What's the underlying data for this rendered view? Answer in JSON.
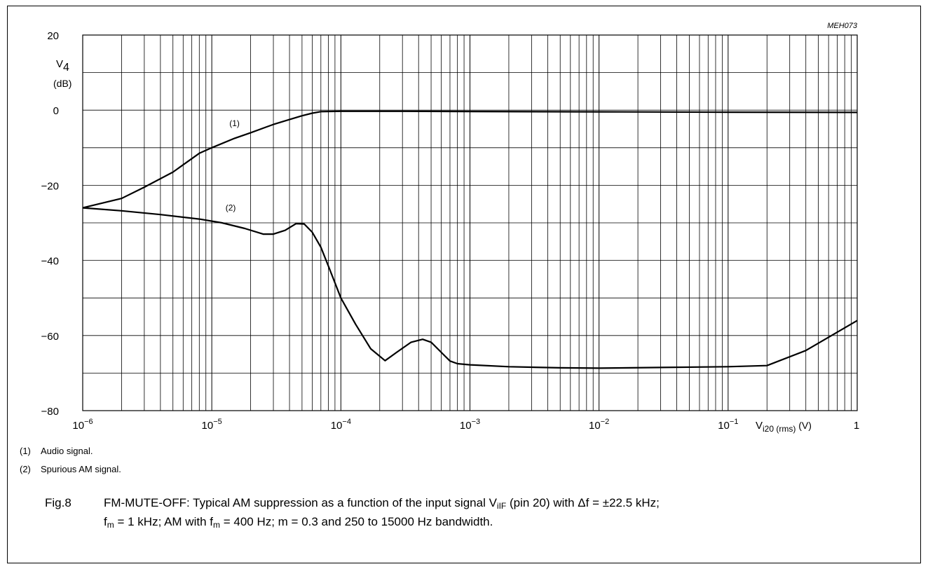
{
  "chart_data": {
    "type": "line",
    "code": "MEH073",
    "x_scale": "log",
    "xlim": [
      1e-06,
      1
    ],
    "ylim": [
      -80,
      20
    ],
    "y_ticks": [
      "20",
      "0",
      "−20",
      "−40",
      "−60",
      "−80"
    ],
    "y_tick_values": [
      20,
      0,
      -20,
      -40,
      -60,
      -80
    ],
    "x_ticks": [
      {
        "value": 1e-06,
        "base": "10",
        "exp": "−6"
      },
      {
        "value": 1e-05,
        "base": "10",
        "exp": "−5"
      },
      {
        "value": 0.0001,
        "base": "10",
        "exp": "−4"
      },
      {
        "value": 0.001,
        "base": "10",
        "exp": "−3"
      },
      {
        "value": 0.01,
        "base": "10",
        "exp": "−2"
      },
      {
        "value": 0.1,
        "base": "10",
        "exp": "−1"
      },
      {
        "value": 1,
        "base": "1",
        "exp": ""
      }
    ],
    "ylabel": {
      "main": "V",
      "sub": "4",
      "unit": "(dB)"
    },
    "xlabel": {
      "main": "V",
      "sub": "i20 (rms)",
      "unit": "(V)"
    },
    "grid": true,
    "series": [
      {
        "name": "(1)",
        "x": [
          1e-06,
          2e-06,
          3e-06,
          5e-06,
          8e-06,
          1e-05,
          1.5e-05,
          2e-05,
          3e-05,
          4e-05,
          5e-05,
          6e-05,
          7e-05,
          0.0001,
          0.0003,
          0.001,
          0.01,
          0.1,
          1
        ],
        "y": [
          -26,
          -23.5,
          -20.5,
          -16.5,
          -11.5,
          -10,
          -7.5,
          -6,
          -3.8,
          -2.5,
          -1.5,
          -0.8,
          -0.4,
          -0.3,
          -0.3,
          -0.35,
          -0.45,
          -0.55,
          -0.6
        ]
      },
      {
        "name": "(2)",
        "x": [
          1e-06,
          2e-06,
          4e-06,
          8e-06,
          1.2e-05,
          1.8e-05,
          2.5e-05,
          3e-05,
          3.7e-05,
          4.5e-05,
          5.2e-05,
          6e-05,
          7e-05,
          8e-05,
          0.0001,
          0.00013,
          0.00017,
          0.00022,
          0.00027,
          0.00035,
          0.00043,
          0.0005,
          0.0006,
          0.0007,
          0.0008,
          0.001,
          0.002,
          0.005,
          0.01,
          0.03,
          0.1,
          0.2,
          0.4,
          1
        ],
        "y": [
          -26,
          -26.8,
          -27.8,
          -29,
          -30,
          -31.5,
          -33,
          -33,
          -32,
          -30.2,
          -30.3,
          -32.5,
          -36.5,
          -41.5,
          -50,
          -57,
          -63.5,
          -66.7,
          -64.5,
          -61.8,
          -61,
          -61.8,
          -64.5,
          -66.8,
          -67.5,
          -67.8,
          -68.3,
          -68.6,
          -68.7,
          -68.5,
          -68.3,
          -68,
          -64,
          -56
        ]
      }
    ],
    "annotations": [
      {
        "text": "(1)",
        "x": 1.5e-05,
        "y": -3.5
      },
      {
        "text": "(2)",
        "x": 1.4e-05,
        "y": -26
      }
    ]
  },
  "notes": [
    {
      "num": "(1)",
      "text": "Audio signal."
    },
    {
      "num": "(2)",
      "text": "Spurious AM signal."
    }
  ],
  "caption": {
    "label": "Fig.8",
    "p1": "FM-MUTE-OFF: Typical AM suppression as a function of the input signal V",
    "p1_sub": "iIF",
    "p2": " (pin 20) with Δf = ±22.5 kHz;",
    "p3": "f",
    "p3_sub": "m",
    "p4": " = 1 kHz; AM with f",
    "p4_sub": "m",
    "p5": " = 400 Hz; m = 0.3 and 250 to 15000 Hz bandwidth."
  }
}
